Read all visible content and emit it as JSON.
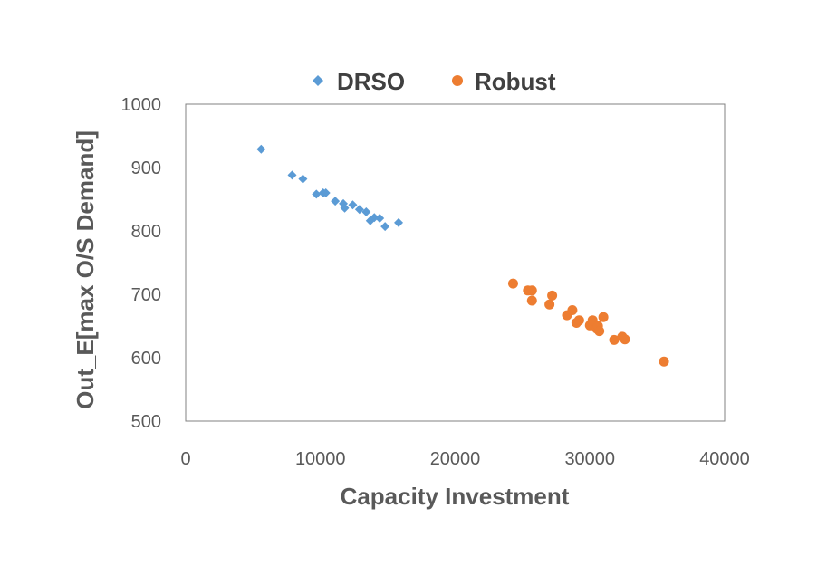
{
  "chart_data": {
    "type": "scatter",
    "title": "",
    "xlabel": "Capacity Investment",
    "ylabel": "Out_E[max O/S Demand]",
    "xlim": [
      0,
      40000
    ],
    "ylim": [
      500,
      1000
    ],
    "xticks": [
      0,
      10000,
      20000,
      30000,
      40000
    ],
    "yticks": [
      500,
      600,
      700,
      800,
      900,
      1000
    ],
    "grid": false,
    "legend_position": "top",
    "series": [
      {
        "name": "DRSO",
        "marker": "diamond",
        "color": "#5B9BD5",
        "points": [
          [
            5600,
            929
          ],
          [
            7900,
            888
          ],
          [
            8700,
            882
          ],
          [
            9700,
            858
          ],
          [
            10200,
            860
          ],
          [
            10400,
            860
          ],
          [
            11100,
            847
          ],
          [
            11700,
            843
          ],
          [
            11800,
            836
          ],
          [
            12400,
            841
          ],
          [
            12900,
            834
          ],
          [
            13400,
            830
          ],
          [
            13700,
            816
          ],
          [
            14000,
            821
          ],
          [
            14400,
            820
          ],
          [
            14800,
            807
          ],
          [
            15800,
            813
          ]
        ]
      },
      {
        "name": "Robust",
        "marker": "circle",
        "color": "#ED7D31",
        "points": [
          [
            24300,
            717
          ],
          [
            25400,
            706
          ],
          [
            25700,
            706
          ],
          [
            25700,
            690
          ],
          [
            27000,
            684
          ],
          [
            27200,
            698
          ],
          [
            28300,
            667
          ],
          [
            28700,
            675
          ],
          [
            29000,
            655
          ],
          [
            29200,
            659
          ],
          [
            30000,
            651
          ],
          [
            30200,
            659
          ],
          [
            30500,
            646
          ],
          [
            30600,
            650
          ],
          [
            30700,
            642
          ],
          [
            31000,
            664
          ],
          [
            31800,
            628
          ],
          [
            32400,
            633
          ],
          [
            32600,
            629
          ],
          [
            35500,
            594
          ]
        ]
      }
    ]
  }
}
